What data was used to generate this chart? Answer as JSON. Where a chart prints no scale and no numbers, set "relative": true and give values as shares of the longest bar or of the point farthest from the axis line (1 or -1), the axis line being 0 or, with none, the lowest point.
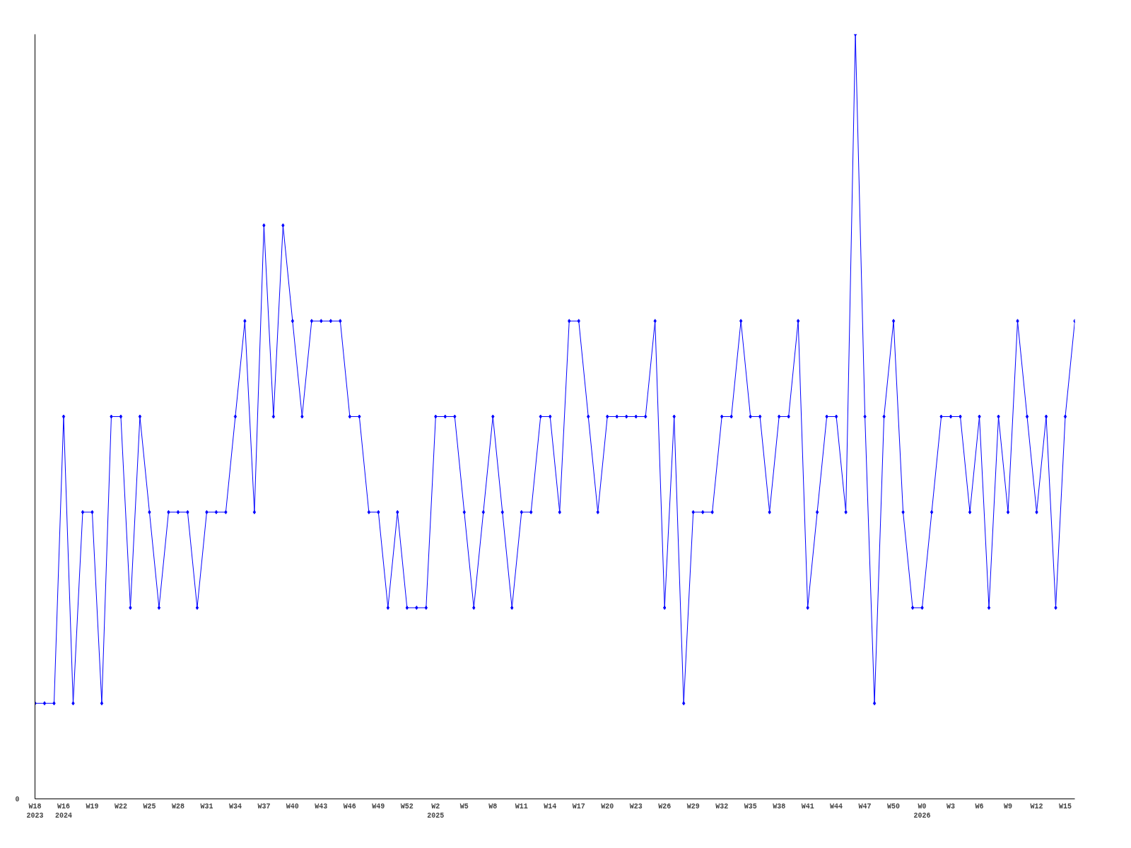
{
  "chart_data": {
    "type": "line",
    "relative": true,
    "marker": "diamond",
    "line_style": "solid",
    "grid": false,
    "annotations": [
      "0"
    ],
    "categories": [
      "W18\n2023",
      null,
      null,
      "W16\n2024",
      null,
      null,
      "W19",
      null,
      null,
      "W22",
      null,
      null,
      "W25",
      null,
      null,
      "W28",
      null,
      null,
      "W31",
      null,
      null,
      "W34",
      null,
      null,
      "W37",
      null,
      null,
      "W40",
      null,
      null,
      "W43",
      null,
      null,
      "W46",
      null,
      null,
      "W49",
      null,
      null,
      "W52",
      null,
      null,
      "W2\n2025",
      null,
      null,
      "W5",
      null,
      null,
      "W8",
      null,
      null,
      "W11",
      null,
      null,
      "W14",
      null,
      null,
      "W17",
      null,
      null,
      "W20",
      null,
      null,
      "W23",
      null,
      null,
      "W26",
      null,
      null,
      "W29",
      null,
      null,
      "W32",
      null,
      null,
      "W35",
      null,
      null,
      "W38",
      null,
      null,
      "W41",
      null,
      null,
      "W44",
      null,
      null,
      "W47",
      null,
      null,
      "W50",
      null,
      null,
      "W0\n2026",
      null,
      null,
      "W3",
      null,
      null,
      "W6",
      null,
      null,
      "W9",
      null,
      null,
      "W12",
      null,
      null,
      "W15",
      null
    ],
    "series": [
      {
        "color": "#0000ff",
        "values": [
          0.125,
          0.125,
          0.125,
          0.5,
          0.125,
          0.375,
          0.375,
          0.125,
          0.5,
          0.5,
          0.25,
          0.5,
          0.375,
          0.25,
          0.375,
          0.375,
          0.375,
          0.25,
          0.375,
          0.375,
          0.375,
          0.5,
          0.625,
          0.375,
          0.75,
          0.5,
          0.75,
          0.625,
          0.5,
          0.625,
          0.625,
          0.625,
          0.625,
          0.5,
          0.5,
          0.375,
          0.375,
          0.25,
          0.375,
          0.25,
          0.25,
          0.25,
          0.5,
          0.5,
          0.5,
          0.375,
          0.25,
          0.375,
          0.5,
          0.375,
          0.25,
          0.375,
          0.375,
          0.5,
          0.5,
          0.375,
          0.625,
          0.625,
          0.5,
          0.375,
          0.5,
          0.5,
          0.5,
          0.5,
          0.5,
          0.625,
          0.25,
          0.5,
          0.125,
          0.375,
          0.375,
          0.375,
          0.5,
          0.5,
          0.625,
          0.5,
          0.5,
          0.375,
          0.5,
          0.5,
          0.625,
          0.25,
          0.375,
          0.5,
          0.5,
          0.375,
          1,
          0.5,
          0.125,
          0.5,
          0.625,
          0.375,
          0.25,
          0.25,
          0.375,
          0.5,
          0.5,
          0.5,
          0.375,
          0.5,
          0.25,
          0.5,
          0.375,
          0.625,
          0.5,
          0.375,
          0.5,
          0.25,
          0.5,
          0.625
        ]
      }
    ]
  }
}
